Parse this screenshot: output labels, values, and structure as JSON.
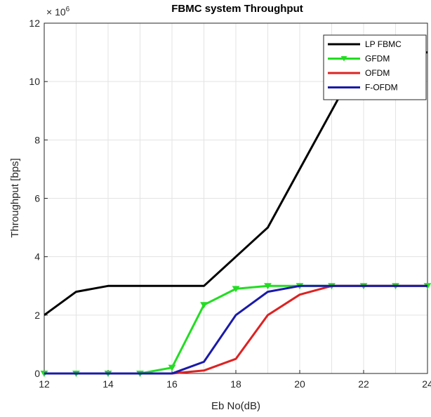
{
  "chart_data": {
    "type": "line",
    "title": "FBMC system Throughput",
    "xlabel": "Eb No(dB)",
    "ylabel": "Throughput [bps]",
    "y_multiplier": "× 10",
    "y_exponent": "6",
    "xlim": [
      12,
      24
    ],
    "ylim": [
      0,
      12
    ],
    "x_ticks": [
      12,
      14,
      16,
      18,
      20,
      22,
      24
    ],
    "y_ticks": [
      0,
      2,
      4,
      6,
      8,
      10,
      12
    ],
    "grid": true,
    "legend_position": "top-right",
    "series": [
      {
        "name": "LP FBMC",
        "color": "#000000",
        "marker": "none",
        "x": [
          12,
          13,
          14,
          15,
          16,
          17,
          18,
          19,
          20,
          21,
          22,
          23,
          24
        ],
        "y": [
          2.0,
          2.8,
          3.0,
          3.0,
          3.0,
          3.0,
          4.0,
          5.0,
          7.0,
          9.0,
          11.0,
          11.0,
          11.0
        ]
      },
      {
        "name": "GFDM",
        "color": "#22dd22",
        "marker": "triangle-down",
        "x": [
          12,
          13,
          14,
          15,
          16,
          17,
          18,
          19,
          20,
          21,
          22,
          23,
          24
        ],
        "y": [
          0,
          0,
          0,
          0,
          0.2,
          2.35,
          2.9,
          3.0,
          3.0,
          3.0,
          3.0,
          3.0,
          3.0
        ]
      },
      {
        "name": "OFDM",
        "color": "#dd2222",
        "marker": "none",
        "x": [
          12,
          13,
          14,
          15,
          16,
          17,
          18,
          19,
          20,
          21,
          22,
          23,
          24
        ],
        "y": [
          0,
          0,
          0,
          0,
          0,
          0.1,
          0.5,
          2.0,
          2.7,
          3.0,
          3.0,
          3.0,
          3.0
        ]
      },
      {
        "name": "F-OFDM",
        "color": "#1a1aaa",
        "marker": "none",
        "x": [
          12,
          13,
          14,
          15,
          16,
          17,
          18,
          19,
          20,
          21,
          22,
          23,
          24
        ],
        "y": [
          0,
          0,
          0,
          0,
          0,
          0.4,
          2.0,
          2.8,
          3.0,
          3.0,
          3.0,
          3.0,
          3.0
        ]
      }
    ]
  }
}
